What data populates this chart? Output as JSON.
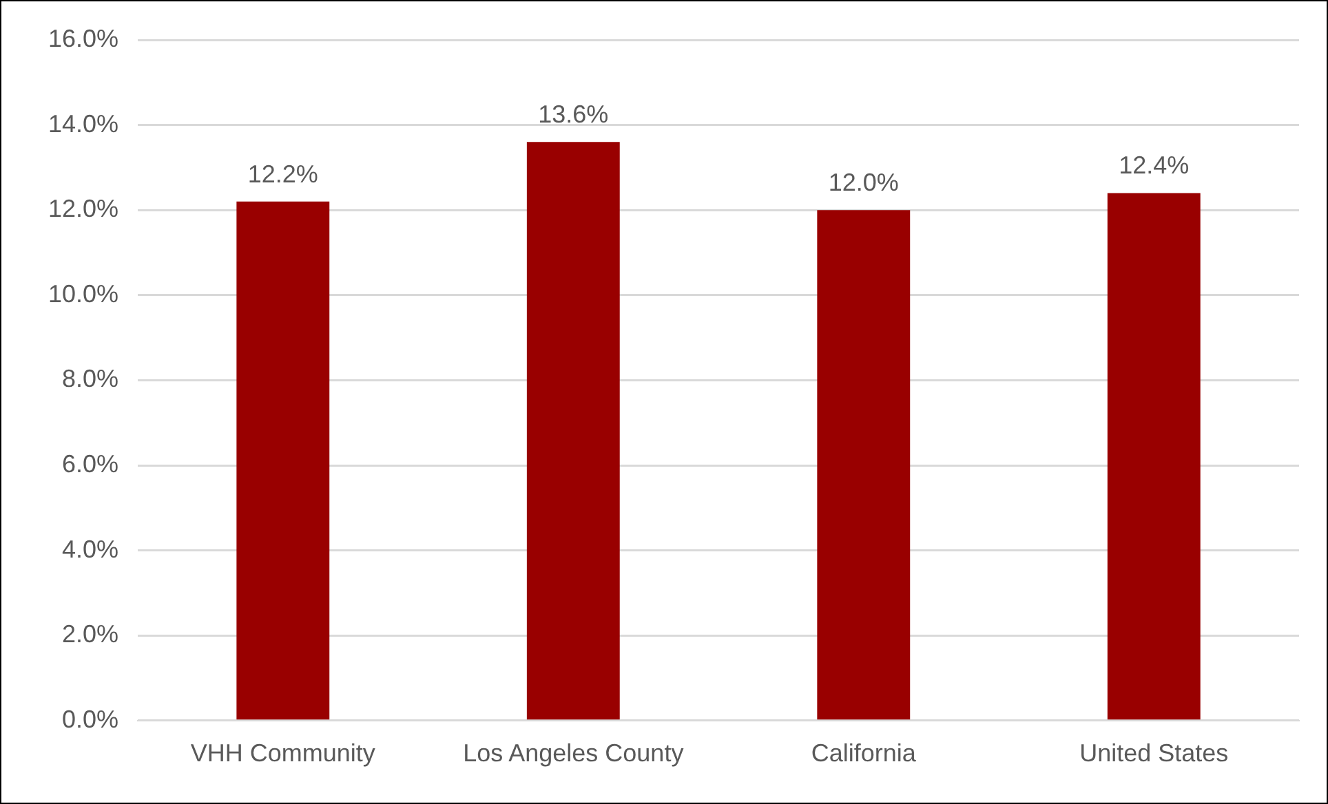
{
  "chart_data": {
    "type": "bar",
    "categories": [
      "VHH Community",
      "Los Angeles County",
      "California",
      "United States"
    ],
    "values": [
      12.2,
      13.6,
      12.0,
      12.4
    ],
    "color": "#990000",
    "value_labels": [
      "12.2%",
      "13.6%",
      "12.0%",
      "12.4%"
    ],
    "ylim": [
      0,
      16
    ],
    "yticks": [
      {
        "value": 0,
        "label": "0.0%"
      },
      {
        "value": 2,
        "label": "2.0%"
      },
      {
        "value": 4,
        "label": "4.0%"
      },
      {
        "value": 6,
        "label": "6.0%"
      },
      {
        "value": 8,
        "label": "8.0%"
      },
      {
        "value": 10,
        "label": "10.0%"
      },
      {
        "value": 12,
        "label": "12.0%"
      },
      {
        "value": 14,
        "label": "14.0%"
      },
      {
        "value": 16,
        "label": "16.0%"
      }
    ],
    "grid": "y",
    "legend": false
  }
}
